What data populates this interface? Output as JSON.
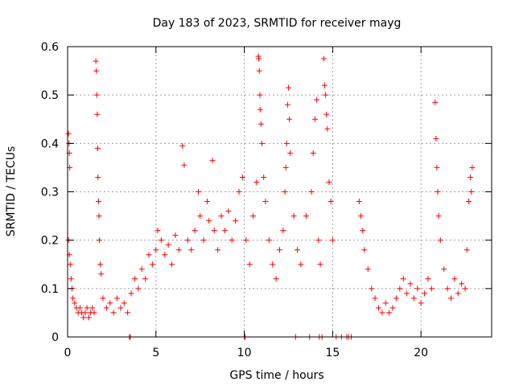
{
  "chart_data": {
    "type": "scatter",
    "title": "Day 183 of 2023, SRMTID for receiver mayg",
    "xlabel": "GPS time / hours",
    "ylabel": "SRMTID / TECUs",
    "xlim": [
      0,
      24
    ],
    "ylim": [
      0,
      0.6
    ],
    "xticks": [
      "0",
      "5",
      "10",
      "15",
      "20"
    ],
    "xtick_values": [
      0,
      5,
      10,
      15,
      20
    ],
    "yticks": [
      "0",
      "0.1",
      "0.2",
      "0.3",
      "0.4",
      "0.5",
      "0.6"
    ],
    "ytick_values": [
      0,
      0.1,
      0.2,
      0.3,
      0.4,
      0.5,
      0.6
    ],
    "grid": true,
    "marker": "+",
    "color": "#ff0000",
    "series": [
      {
        "name": "SRMTID",
        "points": [
          [
            0.05,
            0.42
          ],
          [
            0.08,
            0.4
          ],
          [
            0.1,
            0.38
          ],
          [
            0.12,
            0.35
          ],
          [
            0.05,
            0.2
          ],
          [
            0.1,
            0.17
          ],
          [
            0.15,
            0.15
          ],
          [
            0.2,
            0.12
          ],
          [
            0.25,
            0.1
          ],
          [
            0.3,
            0.08
          ],
          [
            0.4,
            0.07
          ],
          [
            0.5,
            0.06
          ],
          [
            0.6,
            0.05
          ],
          [
            0.7,
            0.06
          ],
          [
            0.8,
            0.05
          ],
          [
            0.9,
            0.04
          ],
          [
            1.0,
            0.05
          ],
          [
            1.1,
            0.06
          ],
          [
            1.2,
            0.04
          ],
          [
            1.3,
            0.05
          ],
          [
            1.4,
            0.06
          ],
          [
            1.5,
            0.05
          ],
          [
            1.6,
            0.57
          ],
          [
            1.62,
            0.55
          ],
          [
            1.65,
            0.5
          ],
          [
            1.68,
            0.46
          ],
          [
            1.7,
            0.39
          ],
          [
            1.72,
            0.33
          ],
          [
            1.75,
            0.28
          ],
          [
            1.78,
            0.25
          ],
          [
            1.8,
            0.2
          ],
          [
            1.85,
            0.15
          ],
          [
            1.9,
            0.13
          ],
          [
            2.0,
            0.08
          ],
          [
            2.2,
            0.06
          ],
          [
            2.4,
            0.07
          ],
          [
            2.6,
            0.05
          ],
          [
            2.8,
            0.08
          ],
          [
            3.0,
            0.06
          ],
          [
            3.2,
            0.07
          ],
          [
            3.4,
            0.05
          ],
          [
            3.6,
            0.09
          ],
          [
            3.8,
            0.12
          ],
          [
            4.0,
            0.1
          ],
          [
            4.2,
            0.14
          ],
          [
            4.4,
            0.12
          ],
          [
            4.6,
            0.17
          ],
          [
            4.8,
            0.15
          ],
          [
            5.0,
            0.18
          ],
          [
            5.1,
            0.22
          ],
          [
            5.3,
            0.2
          ],
          [
            5.5,
            0.17
          ],
          [
            5.7,
            0.19
          ],
          [
            5.9,
            0.15
          ],
          [
            6.1,
            0.21
          ],
          [
            6.3,
            0.18
          ],
          [
            6.5,
            0.395
          ],
          [
            6.6,
            0.355
          ],
          [
            6.8,
            0.2
          ],
          [
            7.0,
            0.18
          ],
          [
            7.2,
            0.22
          ],
          [
            7.4,
            0.3
          ],
          [
            7.5,
            0.25
          ],
          [
            7.7,
            0.2
          ],
          [
            7.9,
            0.28
          ],
          [
            8.0,
            0.24
          ],
          [
            8.2,
            0.365
          ],
          [
            8.3,
            0.22
          ],
          [
            8.5,
            0.18
          ],
          [
            8.7,
            0.25
          ],
          [
            8.9,
            0.22
          ],
          [
            9.1,
            0.26
          ],
          [
            9.3,
            0.2
          ],
          [
            9.5,
            0.24
          ],
          [
            9.7,
            0.3
          ],
          [
            9.9,
            0.33
          ],
          [
            10.1,
            0.2
          ],
          [
            10.3,
            0.15
          ],
          [
            10.5,
            0.25
          ],
          [
            10.7,
            0.32
          ],
          [
            10.8,
            0.58
          ],
          [
            10.82,
            0.575
          ],
          [
            10.85,
            0.55
          ],
          [
            10.88,
            0.5
          ],
          [
            10.9,
            0.47
          ],
          [
            10.95,
            0.44
          ],
          [
            11.0,
            0.4
          ],
          [
            11.1,
            0.33
          ],
          [
            11.2,
            0.28
          ],
          [
            11.4,
            0.2
          ],
          [
            11.6,
            0.15
          ],
          [
            11.8,
            0.12
          ],
          [
            12.0,
            0.18
          ],
          [
            12.2,
            0.22
          ],
          [
            12.3,
            0.3
          ],
          [
            12.35,
            0.35
          ],
          [
            12.4,
            0.4
          ],
          [
            12.45,
            0.48
          ],
          [
            12.5,
            0.515
          ],
          [
            12.55,
            0.45
          ],
          [
            12.6,
            0.38
          ],
          [
            12.8,
            0.25
          ],
          [
            13.0,
            0.18
          ],
          [
            13.2,
            0.15
          ],
          [
            13.5,
            0.25
          ],
          [
            13.8,
            0.3
          ],
          [
            13.9,
            0.38
          ],
          [
            14.0,
            0.45
          ],
          [
            14.1,
            0.49
          ],
          [
            14.2,
            0.2
          ],
          [
            14.3,
            0.15
          ],
          [
            14.5,
            0.575
          ],
          [
            14.55,
            0.52
          ],
          [
            14.6,
            0.5
          ],
          [
            14.65,
            0.46
          ],
          [
            14.7,
            0.43
          ],
          [
            14.8,
            0.32
          ],
          [
            14.9,
            0.28
          ],
          [
            15.0,
            0.2
          ],
          [
            16.5,
            0.28
          ],
          [
            16.6,
            0.25
          ],
          [
            16.7,
            0.22
          ],
          [
            16.8,
            0.18
          ],
          [
            17.0,
            0.14
          ],
          [
            17.2,
            0.1
          ],
          [
            17.4,
            0.08
          ],
          [
            17.6,
            0.06
          ],
          [
            17.8,
            0.05
          ],
          [
            18.0,
            0.07
          ],
          [
            18.2,
            0.05
          ],
          [
            18.4,
            0.06
          ],
          [
            18.6,
            0.08
          ],
          [
            18.8,
            0.1
          ],
          [
            19.0,
            0.12
          ],
          [
            19.2,
            0.09
          ],
          [
            19.4,
            0.11
          ],
          [
            19.6,
            0.08
          ],
          [
            19.8,
            0.1
          ],
          [
            20.0,
            0.07
          ],
          [
            20.2,
            0.09
          ],
          [
            20.4,
            0.12
          ],
          [
            20.6,
            0.1
          ],
          [
            20.8,
            0.485
          ],
          [
            20.85,
            0.41
          ],
          [
            20.9,
            0.35
          ],
          [
            20.95,
            0.3
          ],
          [
            21.0,
            0.25
          ],
          [
            21.1,
            0.2
          ],
          [
            21.3,
            0.14
          ],
          [
            21.5,
            0.1
          ],
          [
            21.7,
            0.08
          ],
          [
            21.9,
            0.12
          ],
          [
            22.1,
            0.09
          ],
          [
            22.3,
            0.11
          ],
          [
            22.5,
            0.1
          ],
          [
            22.6,
            0.18
          ],
          [
            22.7,
            0.28
          ],
          [
            22.8,
            0.33
          ],
          [
            22.9,
            0.35
          ],
          [
            22.85,
            0.3
          ]
        ]
      }
    ],
    "zero_points": [
      3.5,
      3.55,
      10.0,
      10.05,
      12.9,
      13.7,
      14.25,
      14.4,
      15.2,
      15.5,
      15.8,
      15.9,
      16.05
    ]
  }
}
